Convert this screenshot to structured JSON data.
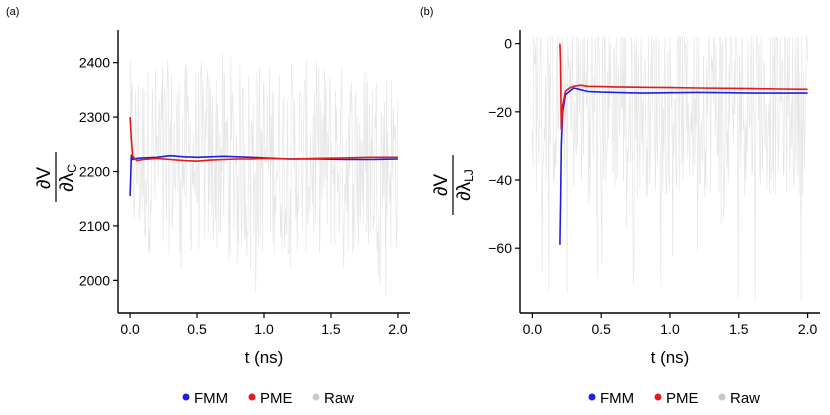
{
  "colors": {
    "fmm": "#1f1fe0",
    "pme": "#e41a1c",
    "raw": "#c8c8c8",
    "raw_band": "#e6e6e6",
    "axis": "#000000"
  },
  "chart_data": [
    {
      "panel_label": "(a)",
      "type": "line",
      "title": "",
      "xlabel": "t (ns)",
      "ylabel": {
        "numerator": "∂V",
        "denominator": "∂λ",
        "subscript": "C"
      },
      "xlim": [
        -0.09,
        2.09
      ],
      "ylim": [
        1940,
        2460
      ],
      "xticks": [
        0.0,
        0.5,
        1.0,
        1.5,
        2.0
      ],
      "xtick_labels": [
        "0.0",
        "0.5",
        "1.0",
        "1.5",
        "2.0"
      ],
      "yticks": [
        2000,
        2100,
        2200,
        2300,
        2400
      ],
      "ytick_labels": [
        "2000",
        "2100",
        "2200",
        "2300",
        "2400"
      ],
      "legend": {
        "position": "bottom",
        "entries": [
          "FMM",
          "PME",
          "Raw"
        ]
      },
      "raw": {
        "name": "Raw",
        "x_start": 0.0,
        "x_end": 2.0,
        "center": 2225,
        "spread": 180,
        "min": 1960,
        "max": 2420
      },
      "series": [
        {
          "name": "FMM",
          "x": [
            0.0,
            0.01,
            0.02,
            0.05,
            0.1,
            0.2,
            0.3,
            0.4,
            0.5,
            0.6,
            0.7,
            0.8,
            0.9,
            1.0,
            1.2,
            1.4,
            1.6,
            1.8,
            2.0
          ],
          "y": [
            2155,
            2230,
            2222,
            2224,
            2225,
            2226,
            2229,
            2227,
            2226,
            2227,
            2228,
            2227,
            2226,
            2225,
            2223,
            2223,
            2222,
            2222,
            2223
          ]
        },
        {
          "name": "PME",
          "x": [
            0.0,
            0.01,
            0.02,
            0.05,
            0.1,
            0.2,
            0.3,
            0.4,
            0.5,
            0.6,
            0.7,
            0.8,
            0.9,
            1.0,
            1.2,
            1.4,
            1.6,
            1.8,
            2.0
          ],
          "y": [
            2300,
            2258,
            2228,
            2220,
            2222,
            2224,
            2222,
            2220,
            2219,
            2221,
            2222,
            2223,
            2223,
            2224,
            2223,
            2224,
            2225,
            2226,
            2226
          ]
        }
      ]
    },
    {
      "panel_label": "(b)",
      "type": "line",
      "title": "",
      "xlabel": "t (ns)",
      "ylabel": {
        "numerator": "∂V",
        "denominator": "∂λ",
        "subscript": "LJ"
      },
      "xlim": [
        -0.09,
        2.09
      ],
      "ylim": [
        -79,
        4
      ],
      "xticks": [
        0.0,
        0.5,
        1.0,
        1.5,
        2.0
      ],
      "xtick_labels": [
        "0.0",
        "0.5",
        "1.0",
        "1.5",
        "2.0"
      ],
      "yticks": [
        -60,
        -40,
        -20,
        0
      ],
      "ytick_labels": [
        "−60",
        "−40",
        "−20",
        "0"
      ],
      "legend": {
        "position": "bottom",
        "entries": [
          "FMM",
          "PME",
          "Raw"
        ]
      },
      "raw": {
        "name": "Raw",
        "x_start": 0.0,
        "x_end": 2.0,
        "center": -15,
        "spread": 30,
        "min": -76,
        "max": 2
      },
      "series": [
        {
          "name": "FMM",
          "x": [
            0.2,
            0.205,
            0.21,
            0.22,
            0.24,
            0.27,
            0.3,
            0.35,
            0.4,
            0.5,
            0.6,
            0.8,
            1.0,
            1.2,
            1.4,
            1.6,
            1.8,
            2.0
          ],
          "y": [
            -59,
            -46,
            -30,
            -20,
            -15,
            -14,
            -13,
            -13.5,
            -14,
            -14.2,
            -14.3,
            -14.5,
            -14.4,
            -14.3,
            -14.4,
            -14.5,
            -14.5,
            -14.5
          ]
        },
        {
          "name": "PME",
          "x": [
            0.2,
            0.205,
            0.21,
            0.22,
            0.24,
            0.27,
            0.3,
            0.35,
            0.4,
            0.5,
            0.6,
            0.8,
            1.0,
            1.2,
            1.4,
            1.6,
            1.8,
            2.0
          ],
          "y": [
            0,
            -6,
            -25,
            -18,
            -14,
            -13,
            -12.5,
            -12.2,
            -12.5,
            -12.6,
            -12.7,
            -12.8,
            -12.9,
            -13,
            -13.1,
            -13.2,
            -13.3,
            -13.4
          ]
        }
      ]
    }
  ]
}
